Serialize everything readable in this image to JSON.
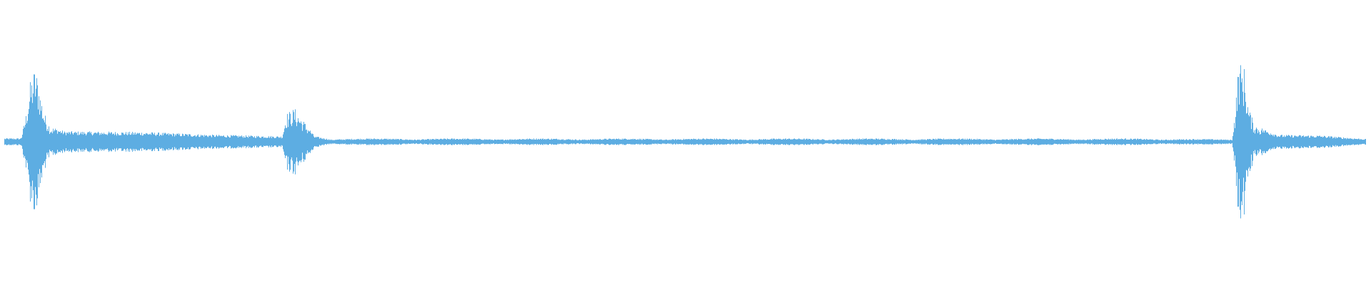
{
  "waveform": {
    "color": "#5DADE2",
    "background": "#FFFFFF"
  }
}
